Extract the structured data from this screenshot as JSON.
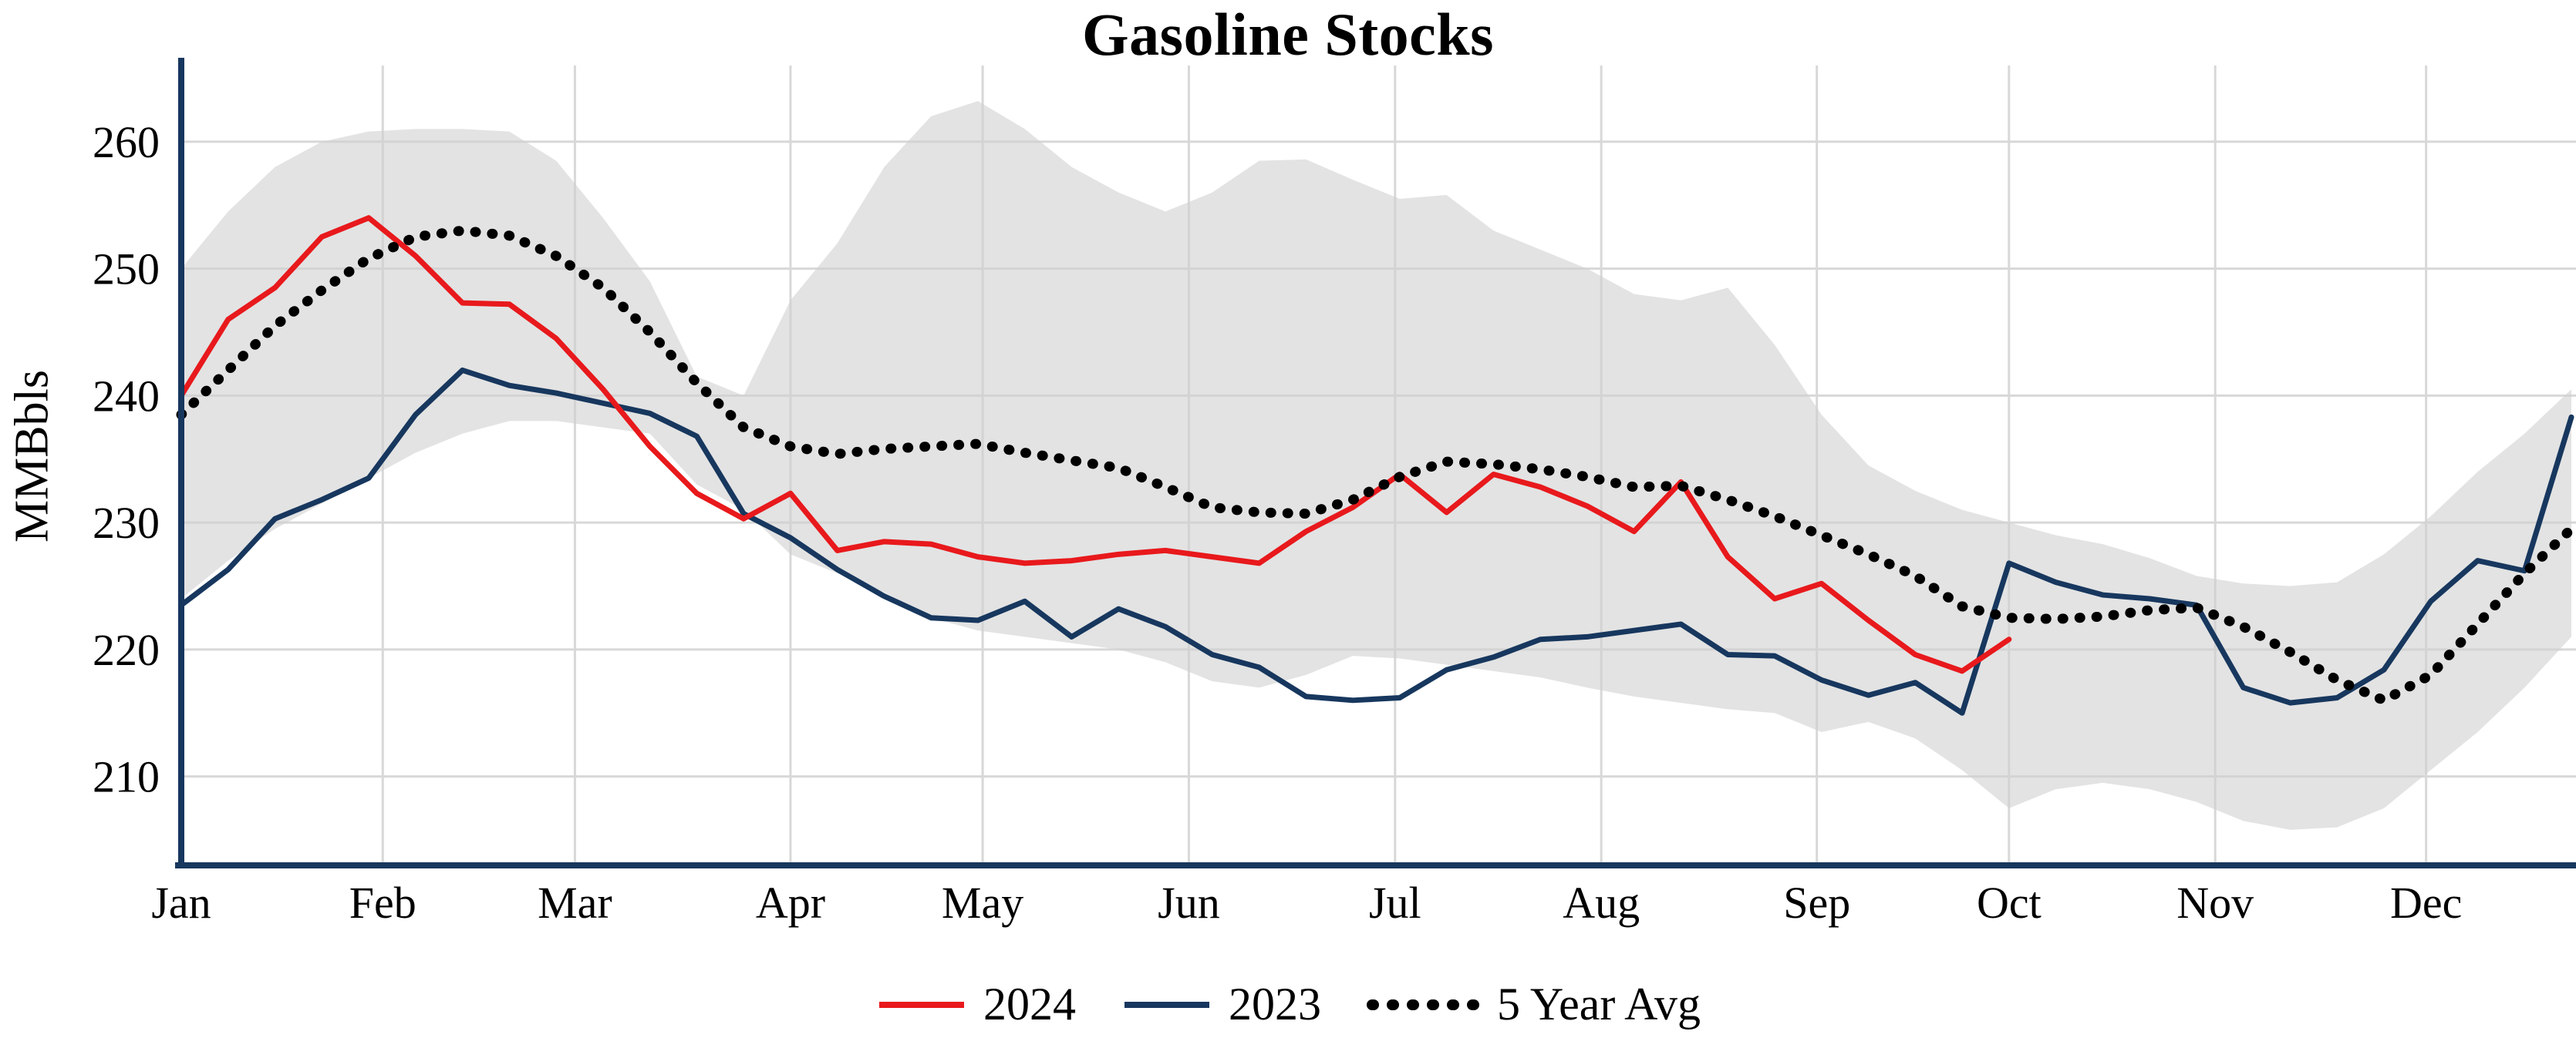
{
  "chart": {
    "title": "Gasoline Stocks",
    "ylabel": "MMBbls",
    "legend": [
      {
        "label": "2024",
        "color": "#e8191c",
        "style": "solid"
      },
      {
        "label": "2023",
        "color": "#17375e",
        "style": "solid"
      },
      {
        "label": "5 Year Avg",
        "color": "#000000",
        "style": "dotted"
      }
    ]
  },
  "chart_data": {
    "type": "line",
    "title": "Gasoline Stocks",
    "ylabel": "MMBbls",
    "x_unit": "week of year",
    "grid": true,
    "legend_position": "bottom",
    "yticks": [
      210,
      220,
      230,
      240,
      250,
      260
    ],
    "ylim": [
      203,
      266
    ],
    "colors": {
      "axis": "#17375e",
      "grid": "#d8d8d8"
    },
    "x": [
      1,
      2,
      3,
      4,
      5,
      6,
      7,
      8,
      9,
      10,
      11,
      12,
      13,
      14,
      15,
      16,
      17,
      18,
      19,
      20,
      21,
      22,
      23,
      24,
      25,
      26,
      27,
      28,
      29,
      30,
      31,
      32,
      33,
      34,
      35,
      36,
      37,
      38,
      39,
      40,
      41,
      42,
      43,
      44,
      45,
      46,
      47,
      48,
      49,
      50,
      51,
      52
    ],
    "x_tick_labels": [
      {
        "label": "Jan",
        "week": 1
      },
      {
        "label": "Feb",
        "week": 5.3
      },
      {
        "label": "Mar",
        "week": 9.4
      },
      {
        "label": "Apr",
        "week": 14
      },
      {
        "label": "May",
        "week": 18.1
      },
      {
        "label": "Jun",
        "week": 22.5
      },
      {
        "label": "Jul",
        "week": 26.9
      },
      {
        "label": "Aug",
        "week": 31.3
      },
      {
        "label": "Sep",
        "week": 35.9
      },
      {
        "label": "Oct",
        "week": 40
      },
      {
        "label": "Nov",
        "week": 44.4
      },
      {
        "label": "Dec",
        "week": 48.9
      }
    ],
    "series": [
      {
        "name": "2024",
        "color": "#e8191c",
        "style": "solid",
        "values": [
          240,
          246,
          248.5,
          252.5,
          254,
          251,
          247.3,
          247.2,
          244.5,
          240.5,
          236,
          232.3,
          230.3,
          232.3,
          227.8,
          228.5,
          228.3,
          227.3,
          226.8,
          227,
          227.5,
          227.8,
          227.3,
          226.8,
          229.3,
          231.2,
          233.8,
          230.8,
          233.8,
          232.8,
          231.3,
          229.3,
          233.2,
          227.3,
          224,
          225.2,
          222.3,
          219.6,
          218.3,
          220.8
        ]
      },
      {
        "name": "2023",
        "color": "#17375e",
        "style": "solid",
        "values": [
          223.5,
          226.3,
          230.3,
          231.8,
          233.5,
          238.5,
          242,
          240.8,
          240.2,
          239.4,
          238.6,
          236.8,
          230.7,
          228.8,
          226.3,
          224.2,
          222.5,
          222.3,
          223.8,
          221,
          223.2,
          221.8,
          219.6,
          218.6,
          216.3,
          216,
          216.2,
          218.4,
          219.4,
          220.8,
          221,
          221.5,
          222,
          219.6,
          219.5,
          217.6,
          216.4,
          217.4,
          215,
          226.8,
          225.3,
          224.3,
          224,
          223.5,
          217,
          215.8,
          216.2,
          218.4,
          223.8,
          227,
          226.2,
          238.3
        ]
      },
      {
        "name": "5 Year Avg",
        "color": "#000000",
        "style": "dotted",
        "values": [
          238.5,
          242,
          245.5,
          248.3,
          250.8,
          252.5,
          253,
          252.6,
          251,
          248.5,
          245,
          241,
          237.5,
          236,
          235.4,
          235.8,
          236,
          236.2,
          235.5,
          234.9,
          234.3,
          232.8,
          231.2,
          230.8,
          230.7,
          231.8,
          233.6,
          234.8,
          234.6,
          234.2,
          233.6,
          232.8,
          232.9,
          231.8,
          230.5,
          229,
          227.5,
          225.8,
          223.4,
          222.5,
          222.4,
          222.6,
          223.1,
          223.3,
          221.8,
          219.8,
          217.6,
          216,
          218,
          222,
          226,
          229.5
        ]
      }
    ],
    "band": {
      "color": "#d0d0d0",
      "upper": [
        250,
        254.5,
        258,
        260,
        260.8,
        261,
        261,
        260.8,
        258.5,
        254,
        249,
        241.5,
        240,
        247.5,
        252,
        258,
        262,
        263.2,
        261,
        258,
        256,
        254.5,
        256,
        258.5,
        258.6,
        257,
        255.5,
        255.8,
        253,
        251.5,
        250,
        248,
        247.5,
        248.5,
        244,
        238.5,
        234.5,
        232.5,
        231,
        230,
        229,
        228.3,
        227.2,
        225.8,
        225.2,
        225,
        225.3,
        227.5,
        230.5,
        234,
        237,
        240.5
      ],
      "lower": [
        224,
        227,
        229.5,
        231.5,
        233.5,
        235.5,
        237,
        238,
        238,
        237.5,
        237,
        233,
        231,
        227.5,
        226,
        224.5,
        222.5,
        221.5,
        221,
        220.5,
        220,
        219,
        217.5,
        217,
        218,
        219.5,
        219.3,
        218.8,
        218.3,
        217.8,
        217,
        216.3,
        215.8,
        215.3,
        215,
        213.5,
        214.3,
        213,
        210.5,
        207.5,
        209,
        209.5,
        209,
        208,
        206.5,
        205.8,
        206,
        207.5,
        210.5,
        213.5,
        217,
        221
      ]
    }
  }
}
